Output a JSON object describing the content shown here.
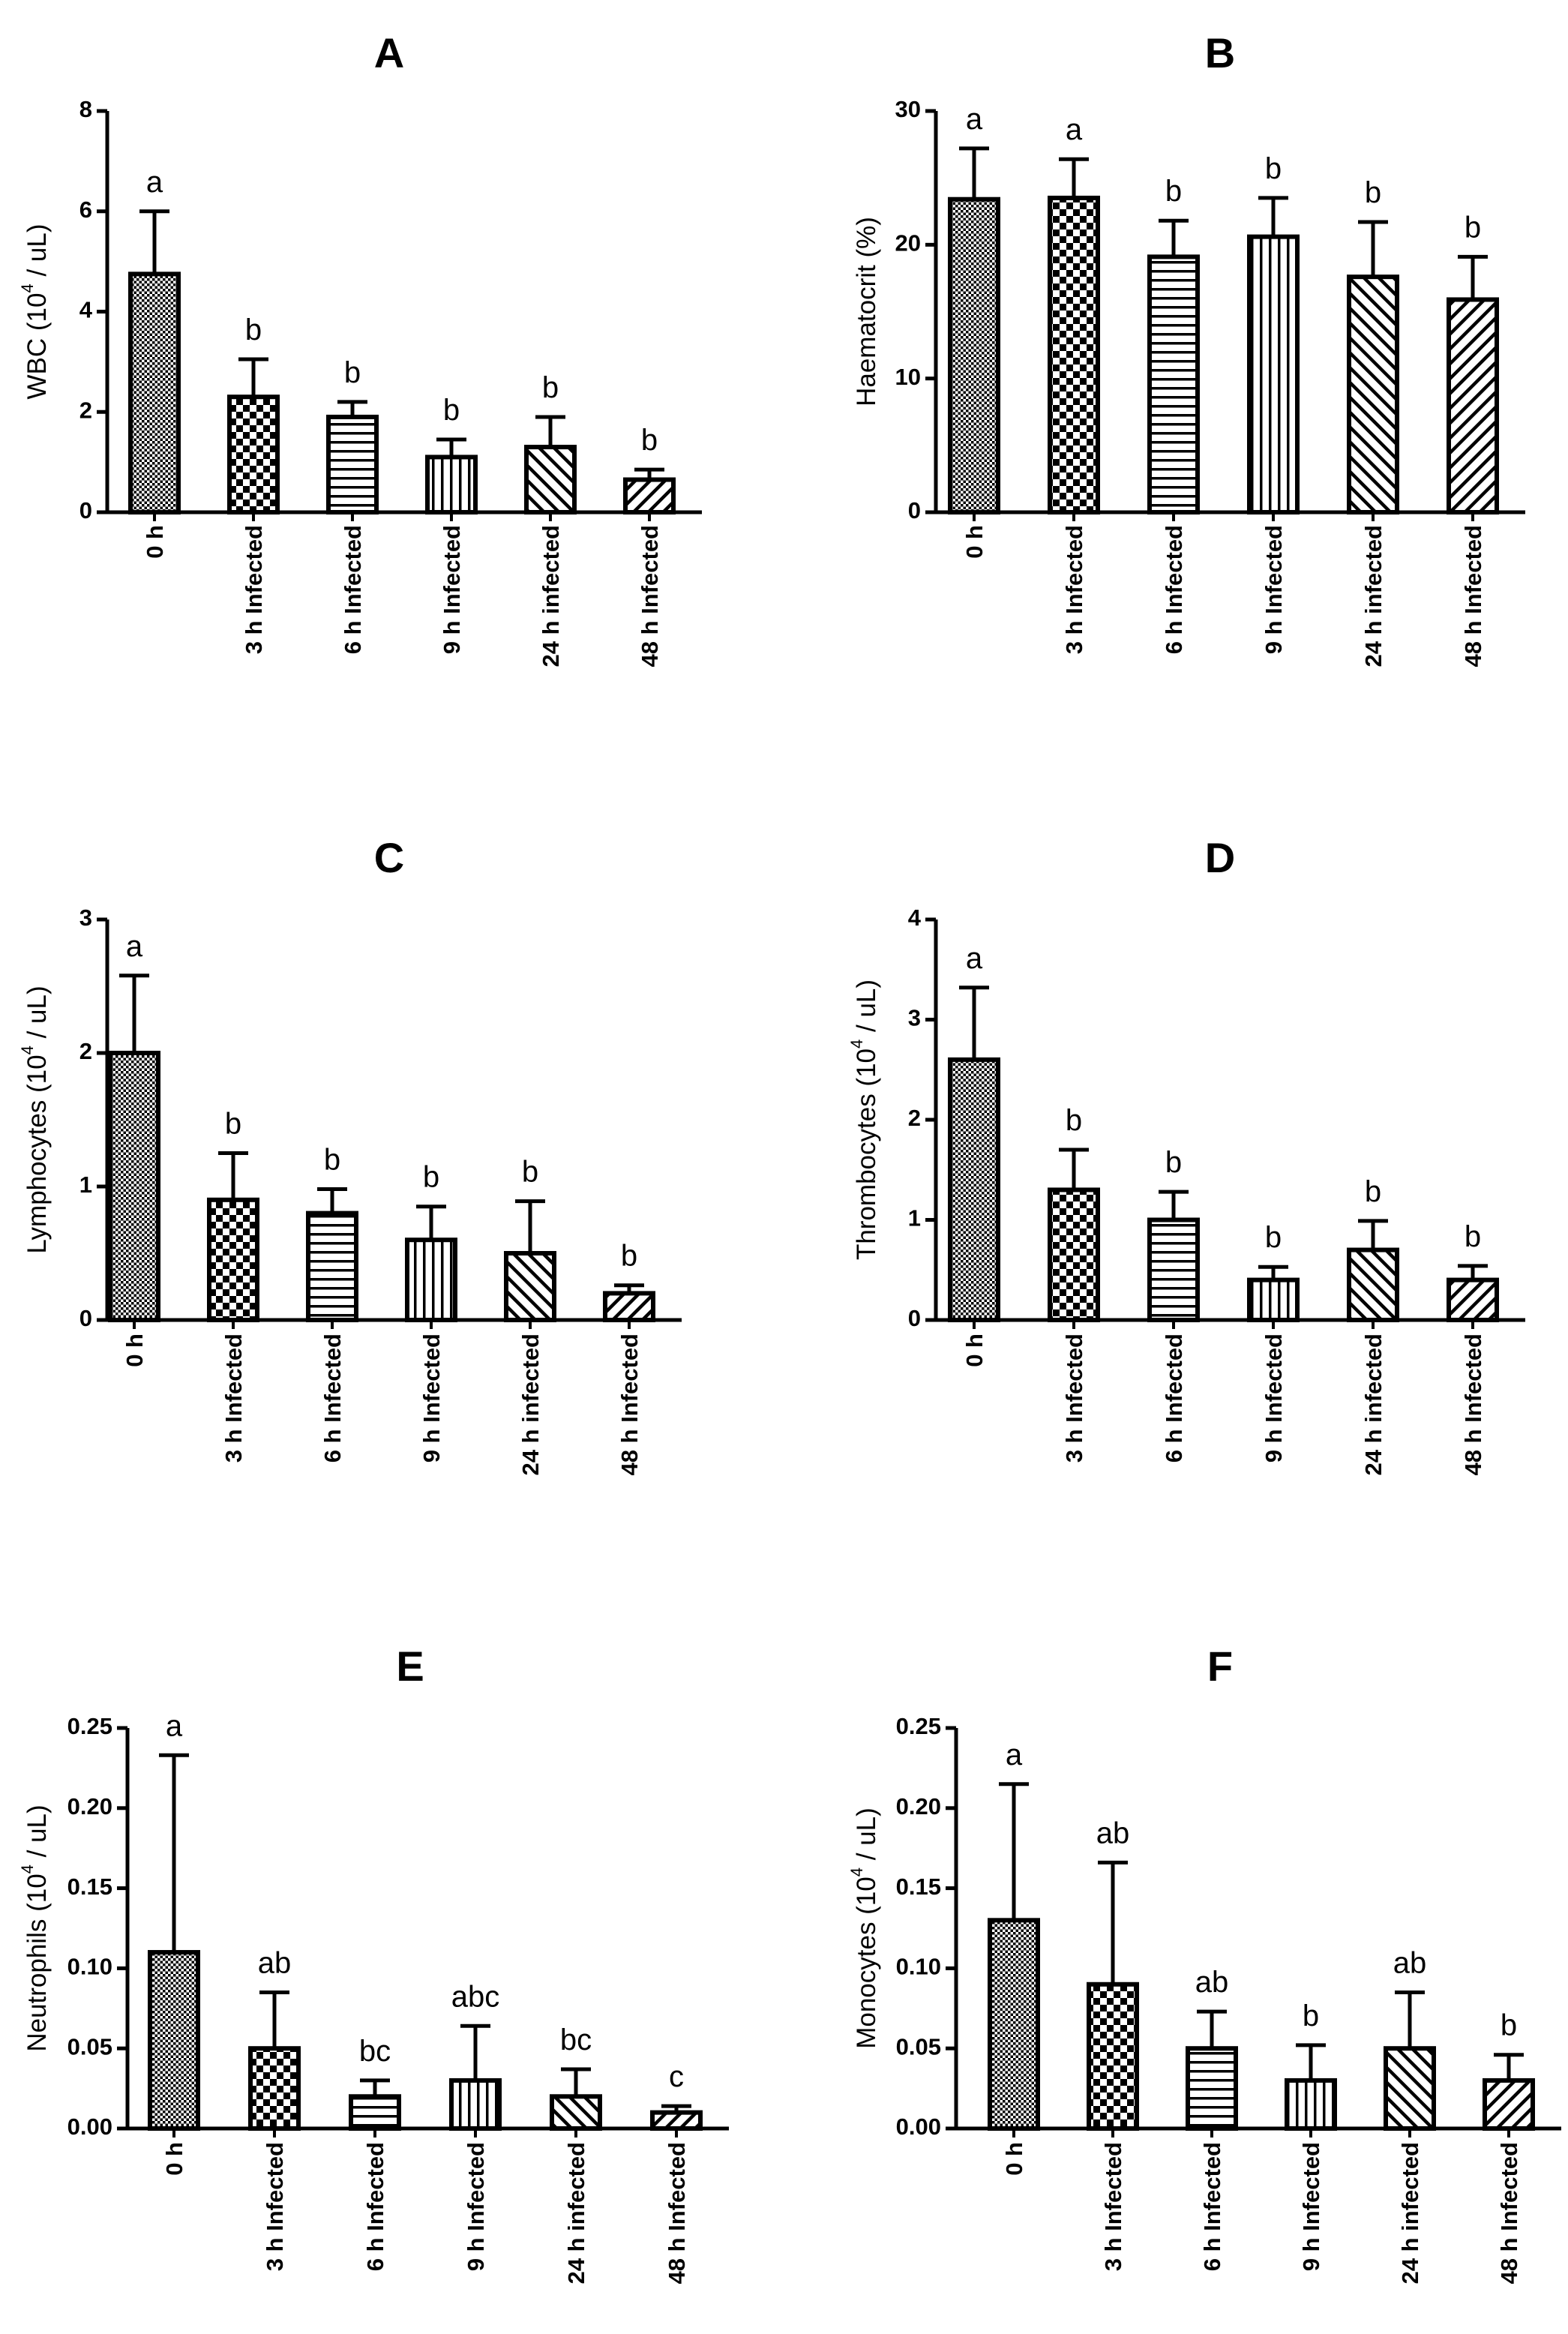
{
  "chart_data": [
    {
      "id": "A",
      "type": "bar",
      "title": "A",
      "ylabel_prefix": "WBC (10",
      "ylabel_sup": "4",
      "ylabel_suffix": " / uL)",
      "ylim": [
        0,
        8
      ],
      "yticks": [
        "0",
        "2",
        "4",
        "6",
        "8"
      ],
      "categories": [
        "0 h",
        "3 h Infected",
        "6 h Infected",
        "9 h Infected",
        "24 h infected",
        "48 h Infected"
      ],
      "values": [
        4.75,
        2.3,
        1.9,
        1.1,
        1.3,
        0.65
      ],
      "errors": [
        1.25,
        0.75,
        0.3,
        0.35,
        0.6,
        0.2
      ],
      "significance": [
        "a",
        "b",
        "b",
        "b",
        "b",
        "b"
      ]
    },
    {
      "id": "B",
      "type": "bar",
      "title": "B",
      "ylabel_prefix": "Haematocrit (%)",
      "ylabel_sup": "",
      "ylabel_suffix": "",
      "ylim": [
        0,
        30
      ],
      "yticks": [
        "0",
        "10",
        "20",
        "30"
      ],
      "categories": [
        "0 h",
        "3 h Infected",
        "6 h Infected",
        "9 h Infected",
        "24 h infected",
        "48 h Infected"
      ],
      "values": [
        23.4,
        23.5,
        19.1,
        20.6,
        17.6,
        15.9
      ],
      "errors": [
        3.8,
        2.9,
        2.7,
        2.9,
        4.1,
        3.2
      ],
      "significance": [
        "a",
        "a",
        "b",
        "b",
        "b",
        "b"
      ]
    },
    {
      "id": "C",
      "type": "bar",
      "title": "C",
      "ylabel_prefix": "Lymphocytes (10",
      "ylabel_sup": "4",
      "ylabel_suffix": " / uL)",
      "ylim": [
        0,
        3
      ],
      "yticks": [
        "0",
        "1",
        "2",
        "3"
      ],
      "categories": [
        "0 h",
        "3 h Infected",
        "6 h Infected",
        "9 h Infected",
        "24 h infected",
        "48 h Infected"
      ],
      "values": [
        2.0,
        0.9,
        0.8,
        0.6,
        0.5,
        0.2
      ],
      "errors": [
        0.58,
        0.35,
        0.18,
        0.25,
        0.39,
        0.06
      ],
      "significance": [
        "a",
        "b",
        "b",
        "b",
        "b",
        "b"
      ]
    },
    {
      "id": "D",
      "type": "bar",
      "title": "D",
      "ylabel_prefix": "Thrombocytes (10",
      "ylabel_sup": "4",
      "ylabel_suffix": " / uL)",
      "ylim": [
        0,
        4
      ],
      "yticks": [
        "0",
        "1",
        "2",
        "3",
        "4"
      ],
      "categories": [
        "0 h",
        "3 h Infected",
        "6 h Infected",
        "9 h Infected",
        "24 h infected",
        "48 h Infected"
      ],
      "values": [
        2.6,
        1.3,
        1.0,
        0.4,
        0.7,
        0.4
      ],
      "errors": [
        0.72,
        0.4,
        0.28,
        0.13,
        0.29,
        0.14
      ],
      "significance": [
        "a",
        "b",
        "b",
        "b",
        "b",
        "b"
      ]
    },
    {
      "id": "E",
      "type": "bar",
      "title": "E",
      "ylabel_prefix": "Neutrophils (10",
      "ylabel_sup": "4",
      "ylabel_suffix": " / uL)",
      "ylim": [
        0,
        0.25
      ],
      "yticks": [
        "0.00",
        "0.05",
        "0.10",
        "0.15",
        "0.20",
        "0.25"
      ],
      "categories": [
        "0 h",
        "3 h Infected",
        "6 h Infected",
        "9 h Infected",
        "24 h infected",
        "48 h Infected"
      ],
      "values": [
        0.11,
        0.05,
        0.02,
        0.03,
        0.02,
        0.01
      ],
      "errors": [
        0.123,
        0.035,
        0.01,
        0.034,
        0.017,
        0.004
      ],
      "significance": [
        "a",
        "ab",
        "bc",
        "abc",
        "bc",
        "c"
      ]
    },
    {
      "id": "F",
      "type": "bar",
      "title": "F",
      "ylabel_prefix": "Monocytes (10",
      "ylabel_sup": "4",
      "ylabel_suffix": " / uL)",
      "ylim": [
        0,
        0.25
      ],
      "yticks": [
        "0.00",
        "0.05",
        "0.10",
        "0.15",
        "0.20",
        "0.25"
      ],
      "categories": [
        "0 h",
        "3 h Infected",
        "6 h Infected",
        "9 h Infected",
        "24 h infected",
        "48 h Infected"
      ],
      "values": [
        0.13,
        0.09,
        0.05,
        0.03,
        0.05,
        0.03
      ],
      "errors": [
        0.085,
        0.076,
        0.023,
        0.022,
        0.035,
        0.016
      ],
      "significance": [
        "a",
        "ab",
        "ab",
        "b",
        "ab",
        "b"
      ]
    }
  ],
  "colors": {
    "ink": "#000000",
    "background": "#ffffff"
  },
  "patterns": [
    "dots",
    "checker",
    "hlines",
    "vlines",
    "diag-up",
    "diag-down"
  ]
}
